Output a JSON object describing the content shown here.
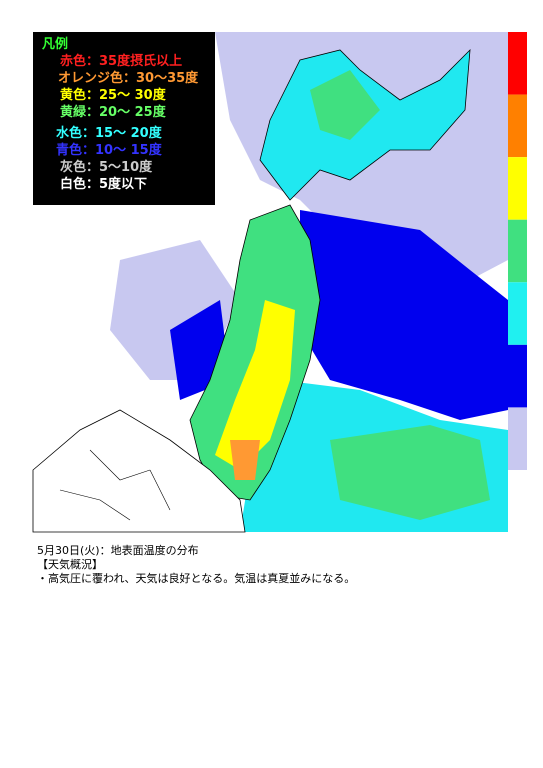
{
  "legend": {
    "title": "凡例",
    "title_color": "#33ff33",
    "items": [
      {
        "label": "赤色：35度摂氏以上",
        "color": "#ff2020"
      },
      {
        "label": "オレンジ色：30～35度",
        "color": "#ff9933"
      },
      {
        "label": "黄色：25～ 30度",
        "color": "#ffff00"
      },
      {
        "label": "黄緑：20～ 25度",
        "color": "#66ff66"
      },
      {
        "label": "水色：15～ 20度",
        "color": "#33ffff"
      },
      {
        "label": "青色：10～ 15度",
        "color": "#3333ff"
      },
      {
        "label": "灰色：5～10度",
        "color": "#cccccc"
      },
      {
        "label": "白色：5度以下",
        "color": "#ffffff"
      }
    ]
  },
  "scale_colors": [
    "#ff0000",
    "#ff8000",
    "#ffff00",
    "#40e080",
    "#20f0f0",
    "#0000ee",
    "#c8c8f0"
  ],
  "caption": [
    "5月30日(火)：地表面温度の分布",
    "【天気概況】",
    "・高気圧に覆われ、天気は良好となる。気温は真夏並みになる。"
  ]
}
